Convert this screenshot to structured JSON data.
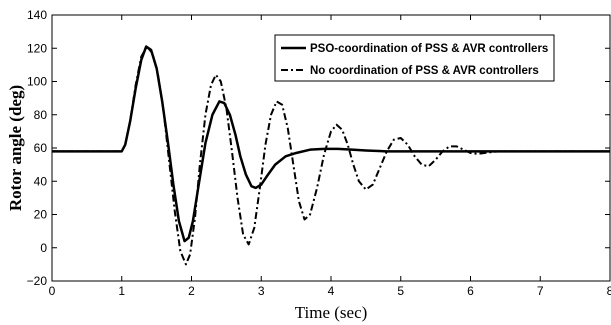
{
  "chart_data": {
    "type": "line",
    "xlabel": "Time (sec)",
    "ylabel": "Rotor angle (deg)",
    "xlim": [
      0,
      8
    ],
    "ylim": [
      -20,
      140
    ],
    "xticks": [
      "0",
      "1",
      "2",
      "3",
      "4",
      "5",
      "6",
      "7",
      "8"
    ],
    "yticks": [
      "−20",
      "0",
      "20",
      "40",
      "60",
      "80",
      "100",
      "120",
      "140"
    ],
    "grid": false,
    "legend_position": "top-right",
    "series": [
      {
        "name": "PSO-coordination of PSS & AVR controllers",
        "style": "solid",
        "color": "#000000",
        "x": [
          0,
          1.0,
          1.05,
          1.12,
          1.2,
          1.28,
          1.35,
          1.42,
          1.5,
          1.58,
          1.66,
          1.74,
          1.82,
          1.9,
          1.96,
          2.02,
          2.1,
          2.2,
          2.3,
          2.4,
          2.47,
          2.55,
          2.63,
          2.7,
          2.78,
          2.86,
          2.92,
          3.0,
          3.08,
          3.2,
          3.35,
          3.5,
          3.7,
          3.9,
          4.1,
          4.3,
          4.5,
          4.8,
          5.2,
          5.6,
          6.0,
          8.0
        ],
        "y": [
          58,
          58,
          62,
          76,
          96,
          113,
          121,
          119,
          108,
          88,
          64,
          38,
          16,
          4,
          6,
          16,
          37,
          63,
          80,
          88,
          87,
          80,
          68,
          55,
          44,
          37,
          36,
          38,
          43,
          50,
          55,
          57,
          59,
          59.5,
          59.5,
          59,
          58.5,
          58,
          58,
          58,
          58,
          58
        ]
      },
      {
        "name": "No coordination of PSS & AVR controllers",
        "style": "dashdot",
        "color": "#000000",
        "x": [
          0,
          1.0,
          1.05,
          1.12,
          1.2,
          1.28,
          1.36,
          1.44,
          1.52,
          1.6,
          1.68,
          1.76,
          1.84,
          1.92,
          1.98,
          2.05,
          2.12,
          2.2,
          2.28,
          2.35,
          2.42,
          2.5,
          2.58,
          2.66,
          2.74,
          2.82,
          2.9,
          2.98,
          3.06,
          3.14,
          3.22,
          3.3,
          3.38,
          3.46,
          3.54,
          3.62,
          3.7,
          3.8,
          3.9,
          4.0,
          4.08,
          4.16,
          4.24,
          4.32,
          4.4,
          4.5,
          4.6,
          4.7,
          4.8,
          4.9,
          5.0,
          5.1,
          5.2,
          5.3,
          5.4,
          5.5,
          5.6,
          5.7,
          5.8,
          5.9,
          6.0,
          6.1,
          6.2,
          6.3,
          6.4,
          6.5,
          8.0
        ],
        "y": [
          58,
          58,
          62,
          76,
          98,
          115,
          121,
          117,
          104,
          82,
          52,
          22,
          -2,
          -10,
          -4,
          18,
          50,
          80,
          98,
          104,
          100,
          84,
          58,
          30,
          8,
          2,
          12,
          36,
          62,
          80,
          88,
          86,
          72,
          50,
          28,
          17,
          20,
          36,
          56,
          70,
          74,
          71,
          62,
          50,
          40,
          35,
          38,
          48,
          58,
          65,
          66,
          62,
          55,
          50,
          49,
          53,
          58,
          61,
          61,
          59,
          57,
          56.5,
          57,
          57.5,
          58,
          58,
          58
        ]
      }
    ]
  }
}
